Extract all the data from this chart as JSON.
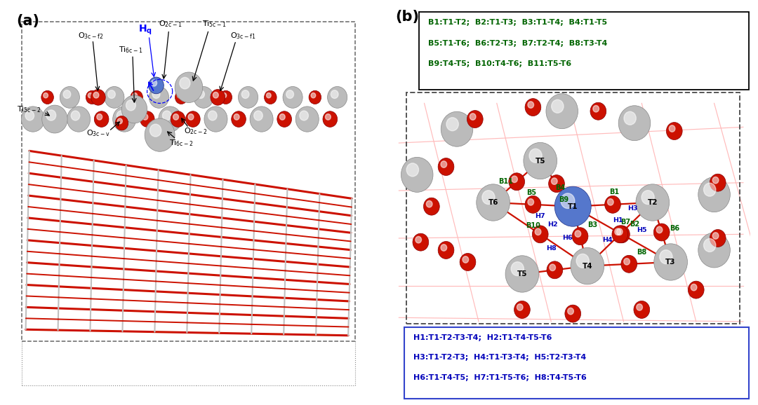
{
  "fig_width": 10.8,
  "fig_height": 5.78,
  "bg_color": "#ffffff",
  "panel_a_label": "(a)",
  "panel_b_label": "(b)",
  "b_box_line1": "B1:T1-T2;  B2:T1-T3;  B3:T1-T4;  B4:T1-T5",
  "b_box_line2": "B5:T1-T6;  B6:T2-T3;  B7:T2-T4;  B8:T3-T4",
  "b_box_line3": "B9:T4-T5;  B10:T4-T6;  B11:T5-T6",
  "h_box_line1": "H1:T1-T2-T3-T4;  H2:T1-T4-T5-T6",
  "h_box_line2": "H3:T1-T2-T3;  H4:T1-T3-T4;  H5:T2-T3-T4",
  "h_box_line3": "H6:T1-T4-T5;  H7:T1-T5-T6;  H8:T4-T5-T6",
  "b_text_color": "#006400",
  "h_text_color": "#0000bb",
  "h_box_edge_color": "#3344cc",
  "ti_color": "#bbbbbb",
  "ti_edge": "#888888",
  "o_color": "#cc1100",
  "o_edge": "#880000",
  "ni_color": "#5577cc",
  "ni_edge": "#223388",
  "red_rod": "#cc1100",
  "gray_rod": "#c0c0c0",
  "label_fs": 8.0,
  "label_sub_fs": 6.5
}
